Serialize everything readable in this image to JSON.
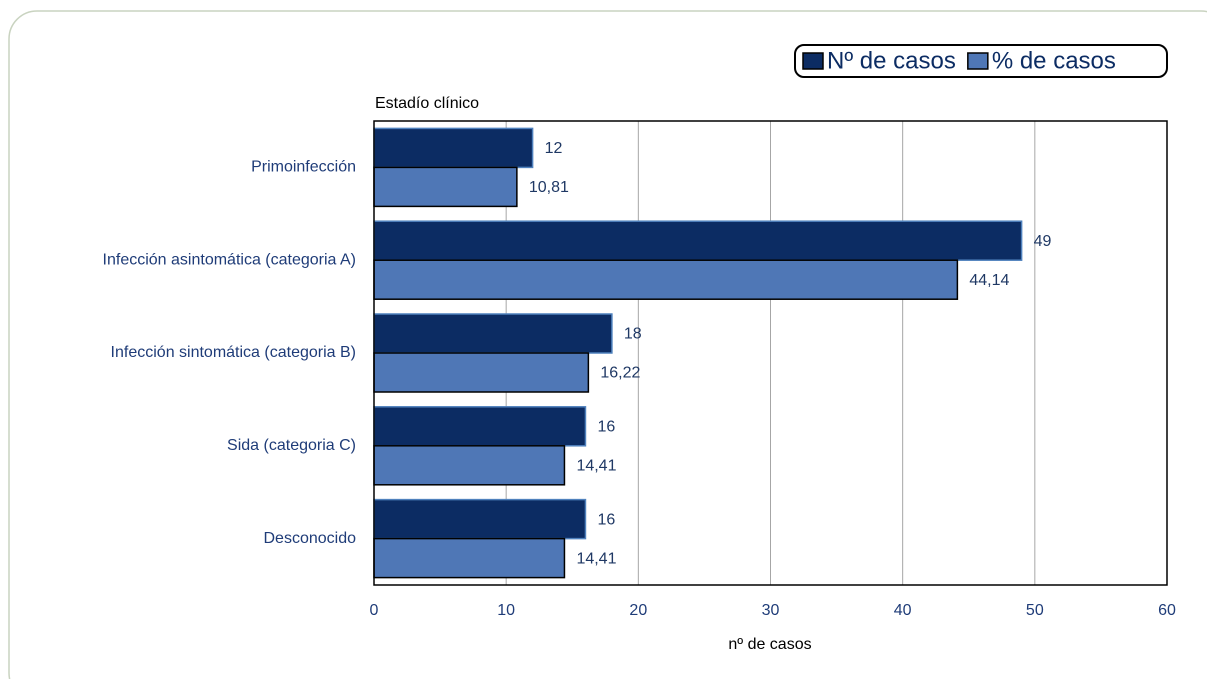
{
  "chart_data": {
    "type": "bar",
    "orientation": "horizontal",
    "title": "Estadío clínico",
    "x_label": "nº de casos",
    "categories": [
      "Primoinfección",
      "Infección asintomática (categoria A)",
      "Infección sintomática (categoria B)",
      "Sida (categoria C)",
      "Desconocido"
    ],
    "series": [
      {
        "name": "Nº de casos",
        "color": "#0c2c63",
        "values": [
          12,
          49,
          18,
          16,
          16
        ]
      },
      {
        "name": "% de casos",
        "color": "#4f77b6",
        "values": [
          10.81,
          44.14,
          16.22,
          14.41,
          14.41
        ],
        "value_labels": [
          "10,81",
          "44,14",
          "16,22",
          "14,41",
          "14,41"
        ]
      }
    ],
    "xlim": [
      0,
      60
    ],
    "xticks": [
      0,
      10,
      20,
      30,
      40,
      50,
      60
    ],
    "grid": true,
    "legend": "top-right"
  }
}
